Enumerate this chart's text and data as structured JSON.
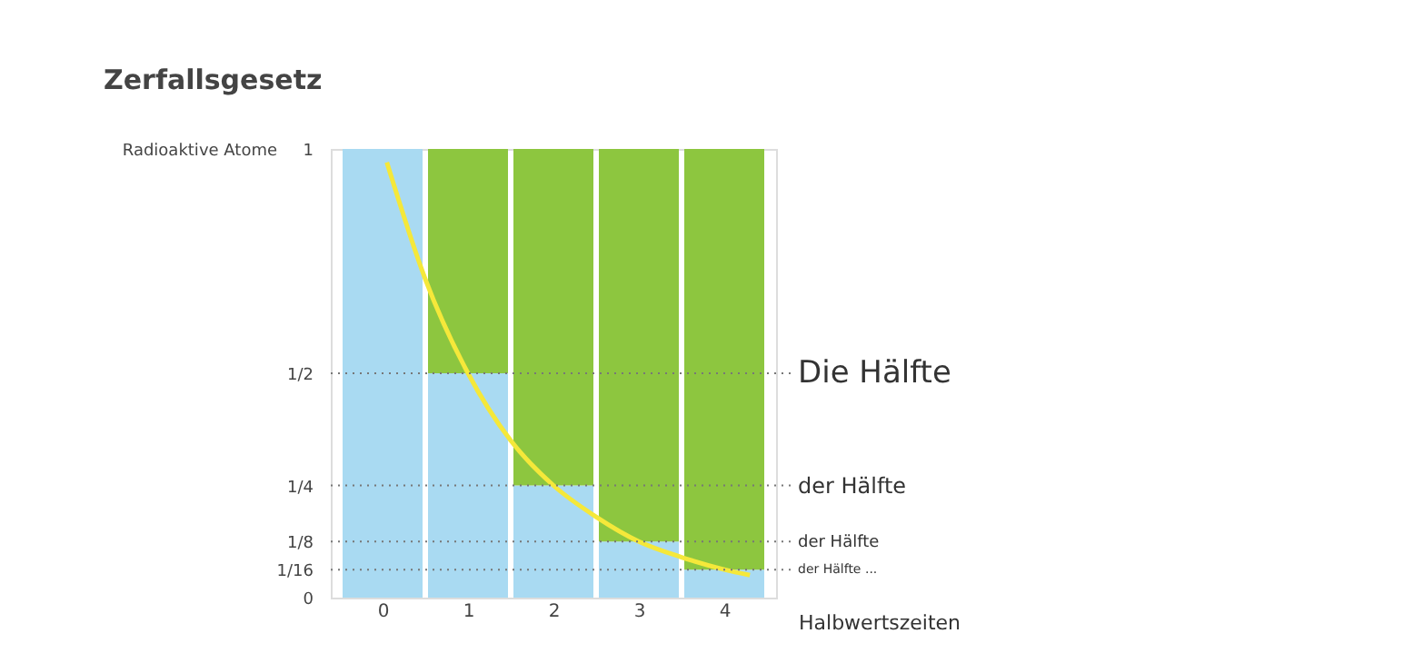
{
  "chart_data": {
    "type": "bar",
    "title": "Zerfallsgesetz",
    "ylabel": "Radioaktive Atome",
    "xlabel": "Halbwertszeiten",
    "x": [
      0,
      1,
      2,
      3,
      4
    ],
    "stacked": true,
    "series": [
      {
        "color": "#a9daf2",
        "values": [
          1,
          0.5,
          0.25,
          0.125,
          0.0625
        ]
      },
      {
        "color": "#8dc63f",
        "values": [
          0,
          0.5,
          0.75,
          0.875,
          0.9375
        ]
      },
      {
        "type": "line",
        "color": "#f5e83a",
        "x": [
          0.05,
          0.5,
          1,
          1.5,
          2,
          2.5,
          3,
          3.5,
          4,
          4.3
        ],
        "values": [
          0.97,
          0.71,
          0.5,
          0.35,
          0.25,
          0.18,
          0.125,
          0.09,
          0.0625,
          0.05
        ]
      }
    ],
    "xlim": [
      -0.5,
      4.5
    ],
    "xticks": [
      0,
      1,
      2,
      3,
      4
    ],
    "ylim": [
      0,
      1
    ],
    "yticks": [
      0,
      {
        "value": 0.0625,
        "label": "1/16"
      },
      {
        "value": 0.125,
        "label": "1/8"
      },
      {
        "value": 0.25,
        "label": "1/4"
      },
      {
        "value": 0.5,
        "label": "1/2"
      },
      1
    ],
    "ref_lines": [
      {
        "axis": "y",
        "value": 0.5,
        "label": "Die Hälfte",
        "line_style": "dotted"
      },
      {
        "axis": "y",
        "value": 0.25,
        "label": "der Hälfte",
        "line_style": "dotted"
      },
      {
        "axis": "y",
        "value": 0.125,
        "label": "der Hälfte",
        "line_style": "dotted"
      },
      {
        "axis": "y",
        "value": 0.0625,
        "label": "der Hälfte ...",
        "line_style": "dotted"
      }
    ],
    "grid": false
  }
}
